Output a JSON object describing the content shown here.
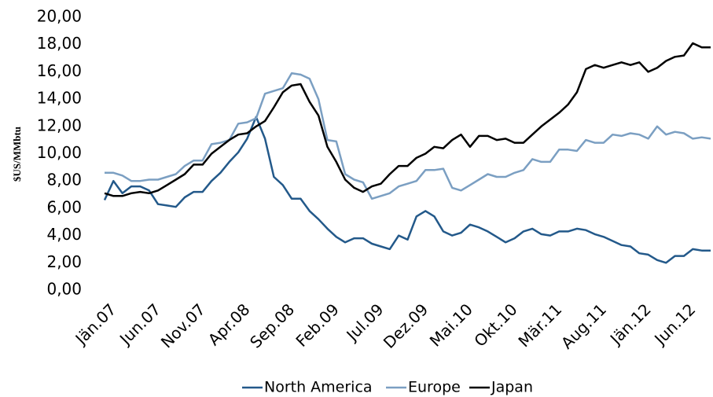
{
  "chart_data": {
    "type": "line",
    "y_label": "$US/MMbtu",
    "categories": [
      "Jän.07",
      null,
      null,
      null,
      null,
      "Jun.07",
      null,
      null,
      null,
      null,
      "Nov.07",
      null,
      null,
      null,
      null,
      "Apr.08",
      null,
      null,
      null,
      null,
      "Sep.08",
      null,
      null,
      null,
      null,
      "Feb.09",
      null,
      null,
      null,
      null,
      "Jul.09",
      null,
      null,
      null,
      null,
      "Dez.09",
      null,
      null,
      null,
      null,
      "Mai.10",
      null,
      null,
      null,
      null,
      "Okt.10",
      null,
      null,
      null,
      null,
      "Mär.11",
      null,
      null,
      null,
      null,
      "Aug.11",
      null,
      null,
      null,
      null,
      "Jän.12",
      null,
      null,
      null,
      null,
      "Jun.12",
      null,
      null,
      null
    ],
    "series": [
      {
        "name": "North America",
        "color": "#23598a",
        "values": [
          6.6,
          8.0,
          7.1,
          7.6,
          7.6,
          7.3,
          6.3,
          6.2,
          6.1,
          6.8,
          7.2,
          7.2,
          8.0,
          8.6,
          9.4,
          10.1,
          11.1,
          12.7,
          11.1,
          8.3,
          7.7,
          6.7,
          6.7,
          5.8,
          5.2,
          4.5,
          3.9,
          3.5,
          3.8,
          3.8,
          3.4,
          3.2,
          3.0,
          4.0,
          3.7,
          5.4,
          5.8,
          5.4,
          4.3,
          4.0,
          4.2,
          4.8,
          4.6,
          4.3,
          3.9,
          3.5,
          3.8,
          4.3,
          4.5,
          4.1,
          4.0,
          4.3,
          4.3,
          4.5,
          4.4,
          4.1,
          3.9,
          3.6,
          3.3,
          3.2,
          2.7,
          2.6,
          2.2,
          2.0,
          2.5,
          2.5,
          3.0,
          2.9,
          2.9
        ]
      },
      {
        "name": "Europe",
        "color": "#7b9fc2",
        "values": [
          8.6,
          8.6,
          8.4,
          8.0,
          8.0,
          8.1,
          8.1,
          8.3,
          8.5,
          9.1,
          9.5,
          9.5,
          10.7,
          10.8,
          11.0,
          12.2,
          12.3,
          12.6,
          14.4,
          14.6,
          14.8,
          15.9,
          15.8,
          15.5,
          14.0,
          11.0,
          10.9,
          8.5,
          8.1,
          7.9,
          6.7,
          6.9,
          7.1,
          7.6,
          7.8,
          8.0,
          8.8,
          8.8,
          8.9,
          7.5,
          7.3,
          7.7,
          8.1,
          8.5,
          8.3,
          8.3,
          8.6,
          8.8,
          9.6,
          9.4,
          9.4,
          10.3,
          10.3,
          10.2,
          11.0,
          10.8,
          10.8,
          11.4,
          11.3,
          11.5,
          11.4,
          11.1,
          12.0,
          11.4,
          11.6,
          11.5,
          11.1,
          11.2,
          11.1
        ]
      },
      {
        "name": "Japan",
        "color": "#000000",
        "values": [
          7.1,
          6.9,
          6.9,
          7.1,
          7.2,
          7.1,
          7.3,
          7.7,
          8.1,
          8.5,
          9.2,
          9.2,
          10.0,
          10.5,
          11.0,
          11.4,
          11.5,
          12.0,
          12.4,
          13.4,
          14.5,
          15.0,
          15.1,
          13.8,
          12.8,
          10.5,
          9.4,
          8.1,
          7.5,
          7.2,
          7.6,
          7.8,
          8.5,
          9.1,
          9.1,
          9.7,
          10.0,
          10.5,
          10.4,
          11.0,
          11.4,
          10.5,
          11.3,
          11.3,
          11.0,
          11.1,
          10.8,
          10.8,
          11.4,
          12.0,
          12.5,
          13.0,
          13.6,
          14.5,
          16.2,
          16.5,
          16.3,
          16.5,
          16.7,
          16.5,
          16.7,
          16.0,
          16.3,
          16.8,
          17.1,
          17.2,
          18.1,
          17.8,
          17.8
        ]
      }
    ],
    "ylim": [
      0,
      20
    ],
    "yticks": [
      {
        "value": 0,
        "label": "0,00"
      },
      {
        "value": 2,
        "label": "2,00"
      },
      {
        "value": 4,
        "label": "4,00"
      },
      {
        "value": 6,
        "label": "6,00"
      },
      {
        "value": 8,
        "label": "8,00"
      },
      {
        "value": 10,
        "label": "10,00"
      },
      {
        "value": 12,
        "label": "12,00"
      },
      {
        "value": 14,
        "label": "14,00"
      },
      {
        "value": 16,
        "label": "16,00"
      },
      {
        "value": 18,
        "label": "18,00"
      },
      {
        "value": 20,
        "label": "20,00"
      }
    ],
    "grid": false,
    "legend": "bottom"
  }
}
